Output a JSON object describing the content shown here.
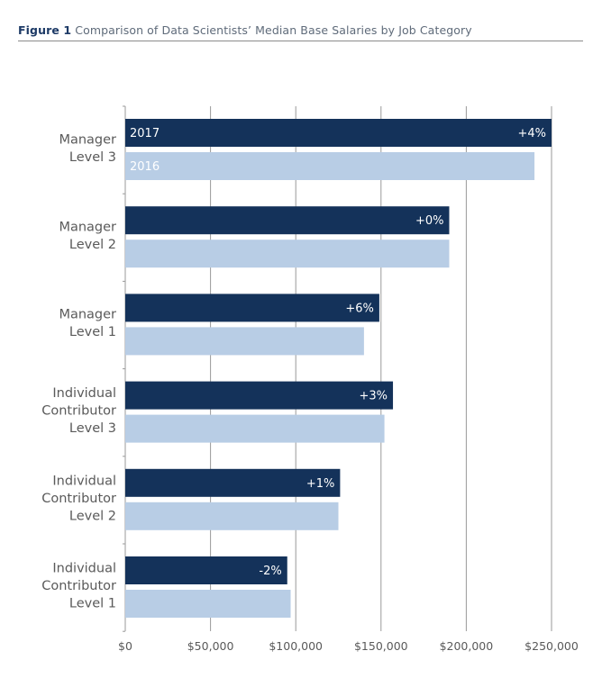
{
  "header": {
    "figure_number": "Figure 1",
    "title": "Comparison of Data Scientists’ Median Base Salaries by Job Category"
  },
  "colors": {
    "series_2017": "#14325a",
    "series_2016": "#b8cde5",
    "grid": "#9a9a9a",
    "text": "#5a5a5a"
  },
  "chart_data": {
    "type": "bar",
    "orientation": "horizontal",
    "title": "Comparison of Data Scientists’ Median Base Salaries by Job Category",
    "xlabel": "",
    "ylabel": "",
    "xlim": [
      0,
      250000
    ],
    "x_ticks": [
      0,
      50000,
      100000,
      150000,
      200000,
      250000
    ],
    "x_tick_labels": [
      "$0",
      "$50,000",
      "$100,000",
      "$150,000",
      "$200,000",
      "$250,000"
    ],
    "grid": true,
    "categories": [
      [
        "Manager",
        "Level 3"
      ],
      [
        "Manager",
        "Level 2"
      ],
      [
        "Manager",
        "Level 1"
      ],
      [
        "Individual",
        "Contributor",
        "Level 3"
      ],
      [
        "Individual",
        "Contributor",
        "Level 2"
      ],
      [
        "Individual",
        "Contributor",
        "Level 1"
      ]
    ],
    "series": [
      {
        "name": "2017",
        "values": [
          250000,
          190000,
          149000,
          157000,
          126000,
          95000
        ],
        "labels": [
          "+4%",
          "+0%",
          "+6%",
          "+3%",
          "+1%",
          "-2%"
        ]
      },
      {
        "name": "2016",
        "values": [
          240000,
          190000,
          140000,
          152000,
          125000,
          97000
        ]
      }
    ]
  }
}
